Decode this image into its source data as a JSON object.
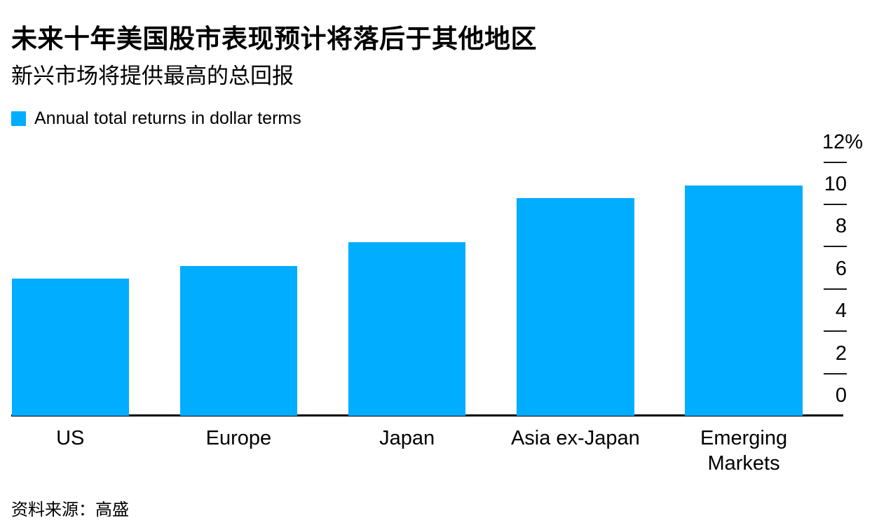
{
  "header": {
    "title": "未来十年美国股市表现预计将落后于其他地区",
    "subtitle": "新兴市场将提供最高的总回报"
  },
  "legend": {
    "label": "Annual total returns in dollar terms",
    "swatch_color": "#00ADFF"
  },
  "source": {
    "text": "资料来源：高盛"
  },
  "chart_data": {
    "type": "bar",
    "title": "未来十年美国股市表现预计将落后于其他地区",
    "subtitle": "新兴市场将提供最高的总回报",
    "legend": [
      "Annual total returns in dollar terms"
    ],
    "legend_position": "top-left",
    "categories": [
      "US",
      "Europe",
      "Japan",
      "Asia ex-Japan",
      "Emerging Markets"
    ],
    "values": [
      6.5,
      7.1,
      8.2,
      10.3,
      10.9
    ],
    "unit": "%",
    "xlabel": "",
    "ylabel": "",
    "ylim": [
      0,
      12
    ],
    "yticks": [
      0,
      2,
      4,
      6,
      8,
      10,
      12
    ],
    "ytick_labels": [
      "0",
      "2",
      "4",
      "6",
      "8",
      "10",
      "12%"
    ],
    "axis_side": "right",
    "grid": false,
    "bar_color": "#00ADFF",
    "axis_color": "#000000",
    "source": "资料来源：高盛"
  }
}
